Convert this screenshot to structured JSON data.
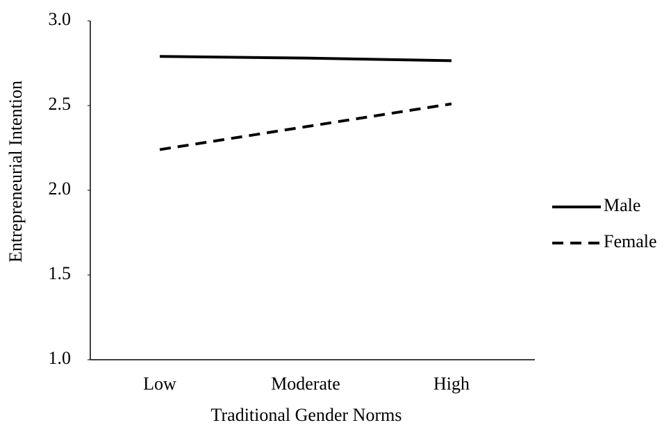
{
  "chart_data": {
    "type": "line",
    "x_label": "Traditional Gender Norms",
    "y_label": "Entrepreneurial Intention",
    "categories": [
      "Low",
      "Moderate",
      "High"
    ],
    "series": [
      {
        "name": "Male",
        "color": "#000000",
        "dash": false,
        "values": [
          2.79,
          2.78,
          2.765
        ]
      },
      {
        "name": "Female",
        "color": "#000000",
        "dash": true,
        "values": [
          2.24,
          2.375,
          2.51
        ]
      }
    ],
    "ylim": [
      1,
      3
    ],
    "yticks": [
      {
        "value": 1,
        "label": "1.0"
      },
      1.5,
      {
        "value": 2,
        "label": "2.0"
      },
      2.5,
      {
        "value": 3,
        "label": "3.0"
      }
    ],
    "grid": false,
    "legend": "right"
  }
}
